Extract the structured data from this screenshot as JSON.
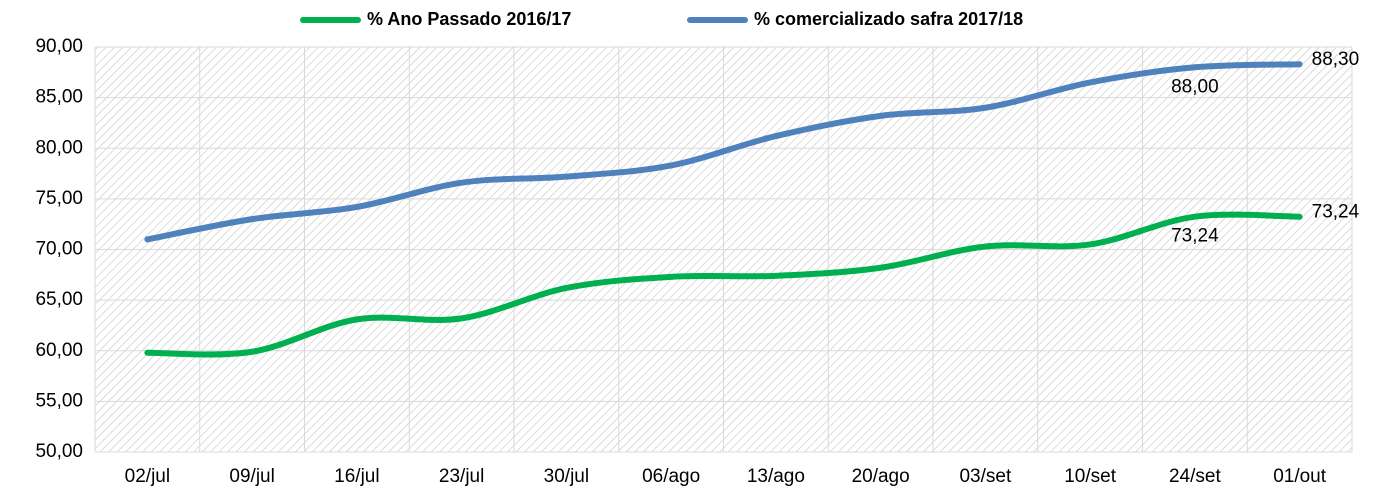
{
  "chart_data": {
    "type": "line",
    "categories": [
      "02/jul",
      "09/jul",
      "16/jul",
      "23/jul",
      "30/jul",
      "06/ago",
      "13/ago",
      "20/ago",
      "03/set",
      "10/set",
      "24/set",
      "01/out"
    ],
    "series": [
      {
        "name": "% Ano Passado 2016/17",
        "color": "#00b050",
        "values": [
          59.8,
          59.9,
          63.1,
          63.2,
          66.2,
          67.3,
          67.4,
          68.2,
          70.3,
          70.5,
          73.24,
          73.24
        ],
        "value_labels": [
          null,
          null,
          null,
          null,
          null,
          null,
          null,
          null,
          null,
          null,
          "73,24",
          "73,24"
        ]
      },
      {
        "name": "% comercializado safra 2017/18",
        "color": "#4f81bd",
        "values": [
          71.0,
          73.0,
          74.2,
          76.6,
          77.2,
          78.3,
          81.2,
          83.2,
          84.0,
          86.5,
          88.0,
          88.3
        ],
        "value_labels": [
          null,
          null,
          null,
          null,
          null,
          null,
          null,
          null,
          null,
          null,
          "88,00",
          "88,30"
        ]
      }
    ],
    "ylim": [
      50,
      90
    ],
    "yticks": [
      {
        "value": 50,
        "label": "50,00"
      },
      {
        "value": 55,
        "label": "55,00"
      },
      {
        "value": 60,
        "label": "60,00"
      },
      {
        "value": 65,
        "label": "65,00"
      },
      {
        "value": 70,
        "label": "70,00"
      },
      {
        "value": 75,
        "label": "75,00"
      },
      {
        "value": 80,
        "label": "80,00"
      },
      {
        "value": 85,
        "label": "85,00"
      },
      {
        "value": 90,
        "label": "90,00"
      }
    ],
    "grid": true,
    "legend": "top"
  }
}
